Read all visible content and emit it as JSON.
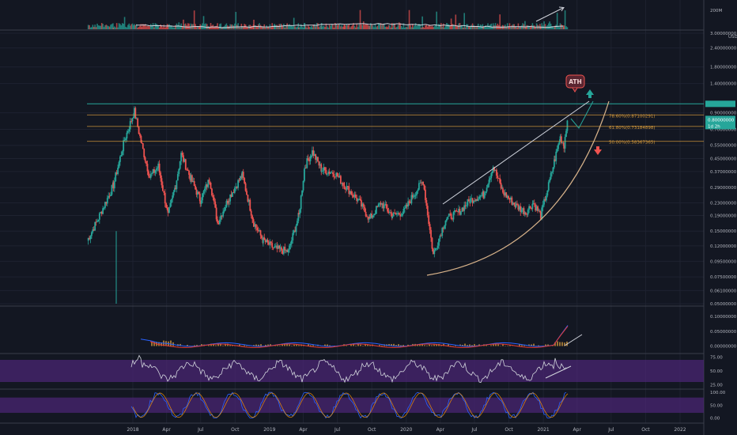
{
  "chart_data": {
    "type": "candlestick",
    "theme": {
      "background": "#131722",
      "grid": "#1e2230",
      "text": "#b2b5be",
      "up": "#26a69a",
      "down": "#ef5350",
      "fib": "#d59a3c",
      "ath_line": "#26a69a",
      "arc": "#d8b38a",
      "trend": "#cfd3dc",
      "rsi_band": "#4a2573",
      "macd_line": "#2962ff",
      "signal_line": "#e53935"
    },
    "x_axis": {
      "ticks": [
        "2018",
        "Apr",
        "Jul",
        "Oct",
        "2019",
        "Apr",
        "Jul",
        "Oct",
        "2020",
        "Apr",
        "Jul",
        "Oct",
        "2021",
        "Apr",
        "Jul",
        "Oct",
        "2022"
      ],
      "tick_dates": [
        "2018-01-01",
        "2018-04-01",
        "2018-07-01",
        "2018-10-01",
        "2019-01-01",
        "2019-04-01",
        "2019-07-01",
        "2019-10-01",
        "2020-01-01",
        "2020-04-01",
        "2020-07-01",
        "2020-10-01",
        "2021-01-01",
        "2021-04-01",
        "2021-07-01",
        "2021-10-01",
        "2022-01-01"
      ],
      "range": [
        "2017-08-20",
        "2022-04-01"
      ]
    },
    "volume": {
      "label": "200M"
    },
    "price": {
      "scale": "log",
      "ylim": [
        0.05,
        3.0
      ],
      "tick_labels": [
        "3.00000000",
        "2.40000000",
        "1.80000000",
        "1.40000000",
        "0.90000000",
        "0.70000000",
        "0.55000000",
        "0.45000000",
        "0.37000000",
        "0.29000000",
        "0.23000000",
        "0.19000000",
        "0.15000000",
        "0.12000000",
        "0.09500000",
        "0.07500000",
        "0.06100000",
        "0.05000000"
      ],
      "tick_values": [
        3.0,
        2.4,
        1.8,
        1.4,
        0.9,
        0.7,
        0.55,
        0.45,
        0.37,
        0.29,
        0.23,
        0.19,
        0.15,
        0.12,
        0.095,
        0.075,
        0.061,
        0.05
      ],
      "currency": "USD",
      "current_price": {
        "label": "0.80000000",
        "value": 0.8,
        "countdown": "1d 2h"
      },
      "ath_price": {
        "label": "",
        "value": 1.03
      },
      "fib_levels": [
        {
          "label": "78.60%(0.87100291)",
          "value": 0.871
        },
        {
          "label": "61.80%(0.73184898)",
          "value": 0.732
        },
        {
          "label": "50.00%(0.58367365)",
          "value": 0.584
        }
      ],
      "ath_marker": "ATH",
      "key_points": [
        {
          "date": "2017-09-01",
          "price": 0.13
        },
        {
          "date": "2017-09-25",
          "price": 0.17
        },
        {
          "date": "2017-11-10",
          "price": 0.3
        },
        {
          "date": "2017-12-10",
          "price": 0.6
        },
        {
          "date": "2018-01-05",
          "price": 0.92
        },
        {
          "date": "2018-01-25",
          "price": 0.55
        },
        {
          "date": "2018-02-15",
          "price": 0.34
        },
        {
          "date": "2018-03-10",
          "price": 0.4
        },
        {
          "date": "2018-04-05",
          "price": 0.19
        },
        {
          "date": "2018-04-25",
          "price": 0.3
        },
        {
          "date": "2018-05-10",
          "price": 0.48
        },
        {
          "date": "2018-06-05",
          "price": 0.33
        },
        {
          "date": "2018-06-30",
          "price": 0.24
        },
        {
          "date": "2018-07-25",
          "price": 0.33
        },
        {
          "date": "2018-08-15",
          "price": 0.17
        },
        {
          "date": "2018-09-15",
          "price": 0.25
        },
        {
          "date": "2018-10-20",
          "price": 0.35
        },
        {
          "date": "2018-11-20",
          "price": 0.17
        },
        {
          "date": "2018-12-15",
          "price": 0.13
        },
        {
          "date": "2019-01-15",
          "price": 0.115
        },
        {
          "date": "2019-02-20",
          "price": 0.11
        },
        {
          "date": "2019-03-20",
          "price": 0.19
        },
        {
          "date": "2019-04-05",
          "price": 0.4
        },
        {
          "date": "2019-04-25",
          "price": 0.5
        },
        {
          "date": "2019-05-20",
          "price": 0.38
        },
        {
          "date": "2019-06-25",
          "price": 0.36
        },
        {
          "date": "2019-07-20",
          "price": 0.3
        },
        {
          "date": "2019-08-25",
          "price": 0.24
        },
        {
          "date": "2019-09-25",
          "price": 0.18
        },
        {
          "date": "2019-10-25",
          "price": 0.23
        },
        {
          "date": "2019-11-25",
          "price": 0.19
        },
        {
          "date": "2019-12-25",
          "price": 0.2
        },
        {
          "date": "2020-01-20",
          "price": 0.26
        },
        {
          "date": "2020-02-15",
          "price": 0.32
        },
        {
          "date": "2020-03-13",
          "price": 0.105
        },
        {
          "date": "2020-04-15",
          "price": 0.18
        },
        {
          "date": "2020-05-20",
          "price": 0.2
        },
        {
          "date": "2020-06-20",
          "price": 0.24
        },
        {
          "date": "2020-07-25",
          "price": 0.26
        },
        {
          "date": "2020-08-20",
          "price": 0.4
        },
        {
          "date": "2020-09-15",
          "price": 0.27
        },
        {
          "date": "2020-10-20",
          "price": 0.22
        },
        {
          "date": "2020-11-15",
          "price": 0.2
        },
        {
          "date": "2020-12-05",
          "price": 0.23
        },
        {
          "date": "2020-12-25",
          "price": 0.19
        },
        {
          "date": "2021-01-15",
          "price": 0.3
        },
        {
          "date": "2021-02-01",
          "price": 0.45
        },
        {
          "date": "2021-02-15",
          "price": 0.62
        },
        {
          "date": "2021-02-25",
          "price": 0.55
        },
        {
          "date": "2021-03-06",
          "price": 0.8
        }
      ]
    },
    "macd": {
      "tick_labels": [
        "0.10000000",
        "0.05000000",
        "0.00000000"
      ],
      "tick_values": [
        0.1,
        0.05,
        0.0
      ]
    },
    "rsi": {
      "tick_labels": [
        "75.00",
        "50.00",
        "25.00"
      ],
      "tick_values": [
        75,
        50,
        25
      ],
      "band": [
        30,
        70
      ]
    },
    "stoch_rsi": {
      "tick_labels": [
        "100.00",
        "50.00",
        "0.00"
      ],
      "tick_values": [
        100,
        50,
        0
      ],
      "band": [
        20,
        80
      ]
    }
  }
}
